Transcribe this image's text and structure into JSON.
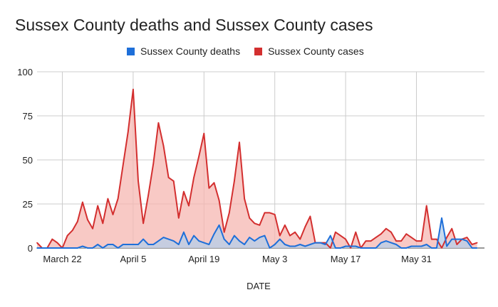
{
  "chart_data": {
    "type": "area",
    "title": "Sussex County deaths and Sussex County cases",
    "xlabel": "DATE",
    "ylabel": "",
    "ylim": [
      0,
      100
    ],
    "yticks": [
      0,
      25,
      50,
      75,
      100
    ],
    "grid": true,
    "legend_position": "top",
    "x_start": "2020-03-17",
    "xticks": [
      {
        "date": "2020-03-22",
        "label": "March 22"
      },
      {
        "date": "2020-04-05",
        "label": "April 5"
      },
      {
        "date": "2020-04-19",
        "label": "April 19"
      },
      {
        "date": "2020-05-03",
        "label": "May 3"
      },
      {
        "date": "2020-05-17",
        "label": "May 17"
      },
      {
        "date": "2020-05-31",
        "label": "May 31"
      }
    ],
    "series": [
      {
        "name": "Sussex County cases",
        "color": "#d32f2f",
        "fill": "#f5b7b1",
        "values": [
          3,
          0,
          0,
          5,
          3,
          0,
          7,
          10,
          15,
          26,
          16,
          11,
          24,
          14,
          28,
          19,
          28,
          47,
          66,
          90,
          38,
          14,
          30,
          48,
          71,
          58,
          40,
          38,
          17,
          32,
          24,
          40,
          52,
          65,
          34,
          37,
          27,
          9,
          20,
          38,
          60,
          28,
          17,
          14,
          13,
          20,
          20,
          19,
          7,
          13,
          7,
          9,
          5,
          12,
          18,
          3,
          3,
          3,
          0,
          9,
          7,
          5,
          0,
          9,
          0,
          4,
          4,
          6,
          8,
          11,
          9,
          4,
          4,
          8,
          6,
          4,
          4,
          24,
          5,
          5,
          0,
          6,
          11,
          2,
          5,
          6,
          2,
          3
        ],
        "dates": [
          "2020-03-17",
          "2020-03-18",
          "2020-03-19",
          "2020-03-20",
          "2020-03-21",
          "2020-03-22",
          "2020-03-23",
          "2020-03-24",
          "2020-03-25",
          "2020-03-26",
          "2020-03-27",
          "2020-03-28",
          "2020-03-29",
          "2020-03-30",
          "2020-03-31",
          "2020-04-01",
          "2020-04-02",
          "2020-04-03",
          "2020-04-04",
          "2020-04-05",
          "2020-04-06",
          "2020-04-07",
          "2020-04-08",
          "2020-04-09",
          "2020-04-10",
          "2020-04-11",
          "2020-04-12",
          "2020-04-13",
          "2020-04-14",
          "2020-04-15",
          "2020-04-16",
          "2020-04-17",
          "2020-04-18",
          "2020-04-19",
          "2020-04-20",
          "2020-04-21",
          "2020-04-22",
          "2020-04-23",
          "2020-04-24",
          "2020-04-25",
          "2020-04-26",
          "2020-04-27",
          "2020-04-28",
          "2020-04-29",
          "2020-04-30",
          "2020-05-01",
          "2020-05-02",
          "2020-05-03",
          "2020-05-04",
          "2020-05-05",
          "2020-05-06",
          "2020-05-07",
          "2020-05-08",
          "2020-05-09",
          "2020-05-10",
          "2020-05-11",
          "2020-05-12",
          "2020-05-13",
          "2020-05-14",
          "2020-05-15",
          "2020-05-16",
          "2020-05-17",
          "2020-05-18",
          "2020-05-19",
          "2020-05-20",
          "2020-05-21",
          "2020-05-22",
          "2020-05-23",
          "2020-05-24",
          "2020-05-25",
          "2020-05-26",
          "2020-05-27",
          "2020-05-28",
          "2020-05-29",
          "2020-05-30",
          "2020-05-31",
          "2020-06-01",
          "2020-06-02",
          "2020-06-03",
          "2020-06-04",
          "2020-06-05",
          "2020-06-06",
          "2020-06-07",
          "2020-06-08",
          "2020-06-09",
          "2020-06-10",
          "2020-06-11",
          "2020-06-12"
        ]
      },
      {
        "name": "Sussex County deaths",
        "color": "#1e6fd9",
        "fill": "#b6cde8",
        "values": [
          0,
          0,
          0,
          0,
          0,
          0,
          0,
          0,
          0,
          1,
          0,
          0,
          2,
          0,
          2,
          2,
          0,
          2,
          2,
          2,
          2,
          5,
          2,
          2,
          4,
          6,
          5,
          4,
          2,
          9,
          2,
          7,
          4,
          3,
          2,
          8,
          13,
          5,
          2,
          7,
          4,
          2,
          6,
          4,
          6,
          7,
          0,
          2,
          5,
          2,
          1,
          1,
          2,
          1,
          2,
          3,
          3,
          2,
          7,
          0,
          0,
          1,
          1,
          1,
          0,
          0,
          0,
          0,
          3,
          4,
          3,
          2,
          0,
          0,
          1,
          1,
          1,
          2,
          0,
          0,
          17,
          1,
          5,
          5,
          5,
          4,
          0,
          0
        ],
        "dates": [
          "2020-03-17",
          "2020-03-18",
          "2020-03-19",
          "2020-03-20",
          "2020-03-21",
          "2020-03-22",
          "2020-03-23",
          "2020-03-24",
          "2020-03-25",
          "2020-03-26",
          "2020-03-27",
          "2020-03-28",
          "2020-03-29",
          "2020-03-30",
          "2020-03-31",
          "2020-04-01",
          "2020-04-02",
          "2020-04-03",
          "2020-04-04",
          "2020-04-05",
          "2020-04-06",
          "2020-04-07",
          "2020-04-08",
          "2020-04-09",
          "2020-04-10",
          "2020-04-11",
          "2020-04-12",
          "2020-04-13",
          "2020-04-14",
          "2020-04-15",
          "2020-04-16",
          "2020-04-17",
          "2020-04-18",
          "2020-04-19",
          "2020-04-20",
          "2020-04-21",
          "2020-04-22",
          "2020-04-23",
          "2020-04-24",
          "2020-04-25",
          "2020-04-26",
          "2020-04-27",
          "2020-04-28",
          "2020-04-29",
          "2020-04-30",
          "2020-05-01",
          "2020-05-02",
          "2020-05-03",
          "2020-05-04",
          "2020-05-05",
          "2020-05-06",
          "2020-05-07",
          "2020-05-08",
          "2020-05-09",
          "2020-05-10",
          "2020-05-11",
          "2020-05-12",
          "2020-05-13",
          "2020-05-14",
          "2020-05-15",
          "2020-05-16",
          "2020-05-17",
          "2020-05-18",
          "2020-05-19",
          "2020-05-20",
          "2020-05-21",
          "2020-05-22",
          "2020-05-23",
          "2020-05-24",
          "2020-05-25",
          "2020-05-26",
          "2020-05-27",
          "2020-05-28",
          "2020-05-29",
          "2020-05-30",
          "2020-05-31",
          "2020-06-01",
          "2020-06-02",
          "2020-06-03",
          "2020-06-04",
          "2020-06-05",
          "2020-06-06",
          "2020-06-07",
          "2020-06-08",
          "2020-06-09",
          "2020-06-10",
          "2020-06-11",
          "2020-06-12"
        ]
      }
    ]
  },
  "legend": {
    "deaths_label": "Sussex County deaths",
    "cases_label": "Sussex County cases",
    "deaths_color": "#1e6fd9",
    "cases_color": "#d32f2f"
  }
}
